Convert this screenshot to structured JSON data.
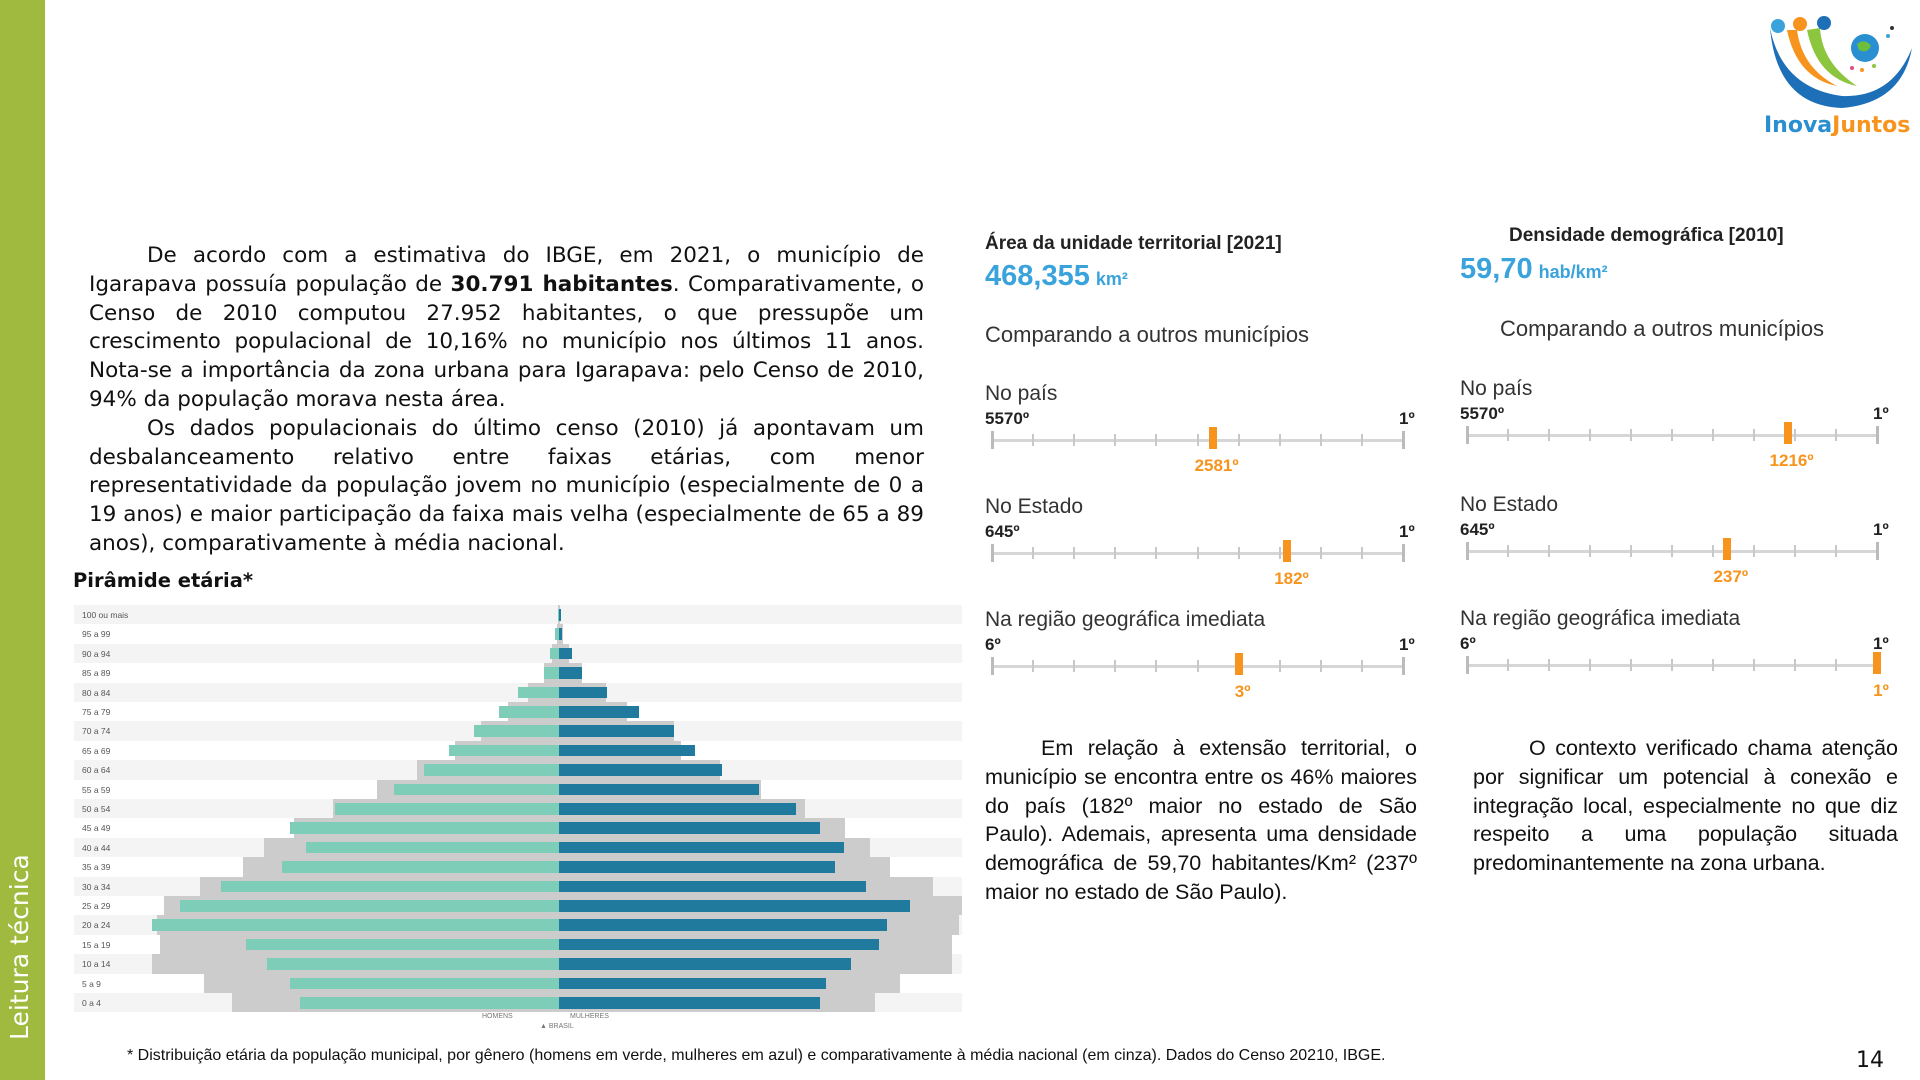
{
  "sidebar": {
    "label": "Leitura técnica",
    "color": "#9fba3e"
  },
  "logo": {
    "text_a": "Inova",
    "text_b": "Juntos"
  },
  "intro": {
    "p1_a": "De acordo com a estimativa do IBGE, em 2021, o município de Igarapava possuía população de ",
    "p1_bold": "30.791 habitantes",
    "p1_b": ". Comparativamente, o Censo de 2010 computou 27.952 habitantes, o que pressupõe um crescimento populacional de 10,16% no município nos últimos 11 anos. Nota-se a importância da zona urbana para Igarapava: pelo Censo de 2010, 94% da população morava nesta área.",
    "p2": "Os dados populacionais do último censo (2010) já apontavam um desbalanceamento relativo entre faixas etárias, com menor representatividade da população jovem no município (especialmente de 0 a 19 anos) e maior participação da faixa mais velha (especialmente de 65 a 89 anos), comparativamente à média nacional."
  },
  "pyramid_title": "Pirâmide etária*",
  "chart_data": {
    "type": "bar",
    "orientation": "horizontal-population-pyramid",
    "unit": "% of population (estimated)",
    "categories": [
      "100 ou mais",
      "95 a 99",
      "90 a 94",
      "85 a 89",
      "80 a 84",
      "75 a 79",
      "70 a 74",
      "65 a 69",
      "60 a 64",
      "55 a 59",
      "50 a 54",
      "45 a 49",
      "40 a 44",
      "35 a 39",
      "30 a 34",
      "25 a 29",
      "20 a 24",
      "15 a 19",
      "10 a 14",
      "5 a 9",
      "0 a 4"
    ],
    "series": [
      {
        "name": "HOMENS",
        "color": "#7ecdb8",
        "values": [
          0.01,
          0.05,
          0.11,
          0.18,
          0.5,
          0.73,
          1.04,
          1.35,
          1.66,
          2.02,
          2.75,
          3.3,
          3.1,
          3.39,
          4.14,
          4.65,
          4.99,
          3.83,
          3.58,
          3.3,
          3.18
        ]
      },
      {
        "name": "MULHERES",
        "color": "#1f7a9e",
        "values": [
          0.02,
          0.04,
          0.16,
          0.28,
          0.59,
          0.98,
          1.41,
          1.67,
          2.0,
          2.45,
          2.91,
          3.2,
          3.49,
          3.38,
          3.76,
          4.3,
          4.02,
          3.92,
          3.58,
          3.27,
          3.2
        ]
      },
      {
        "name": "BRASIL",
        "color": "#cccccc",
        "values_men": [
          0.01,
          0.03,
          0.08,
          0.18,
          0.38,
          0.62,
          0.95,
          1.27,
          1.74,
          2.23,
          2.77,
          3.25,
          3.61,
          3.87,
          4.4,
          4.84,
          4.93,
          4.89,
          4.99,
          4.35,
          4.01
        ],
        "values_women": [
          0.01,
          0.05,
          0.12,
          0.28,
          0.57,
          0.83,
          1.41,
          1.49,
          1.97,
          2.48,
          3.01,
          3.5,
          3.81,
          4.06,
          4.58,
          4.94,
          4.9,
          4.82,
          4.82,
          4.18,
          3.87
        ]
      }
    ],
    "legend": {
      "men": "HOMENS",
      "women": "MULHERES",
      "brasil": "BRASIL"
    },
    "xlim": [
      -5.0,
      5.0
    ]
  },
  "area": {
    "title": "Área da unidade territorial [2021]",
    "value": "468,355",
    "unit": "km²",
    "compare": "Comparando a outros municípios",
    "ranks": [
      {
        "label": "No país",
        "min": "5570º",
        "max": "1º",
        "total": 5570,
        "rank": 2581,
        "rank_label": "2581º"
      },
      {
        "label": "No Estado",
        "min": "645º",
        "max": "1º",
        "total": 645,
        "rank": 182,
        "rank_label": "182º"
      },
      {
        "label": "Na região geográfica imediata",
        "min": "6º",
        "max": "1º",
        "total": 6,
        "rank": 3,
        "rank_label": "3º"
      }
    ],
    "text": "Em relação à extensão territorial, o município se encontra entre os 46% maiores do país (182º maior no estado de São Paulo). Ademais, apresenta uma densidade demográfica de 59,70 habitantes/Km² (237º maior no estado de São Paulo)."
  },
  "density": {
    "title": "Densidade demográfica [2010]",
    "value": "59,70",
    "unit": "hab/km²",
    "compare": "Comparando a outros municípios",
    "ranks": [
      {
        "label": "No país",
        "min": "5570º",
        "max": "1º",
        "total": 5570,
        "rank": 1216,
        "rank_label": "1216º"
      },
      {
        "label": "No Estado",
        "min": "645º",
        "max": "1º",
        "total": 645,
        "rank": 237,
        "rank_label": "237º"
      },
      {
        "label": "Na região geográfica imediata",
        "min": "6º",
        "max": "1º",
        "total": 6,
        "rank": 1,
        "rank_label": "1º"
      }
    ],
    "text": "O contexto verificado chama atenção por significar um potencial à conexão e integração local, especialmente no que diz respeito a uma população situada predominantemente na zona urbana."
  },
  "footnote": "* Distribuição etária da população municipal, por gênero (homens em verde, mulheres em azul) e comparativamente à média nacional (em cinza). Dados do Censo 20210, IBGE.",
  "page_number": "14",
  "colors": {
    "accent_blue": "#3aa3dc",
    "orange": "#f7941d"
  }
}
